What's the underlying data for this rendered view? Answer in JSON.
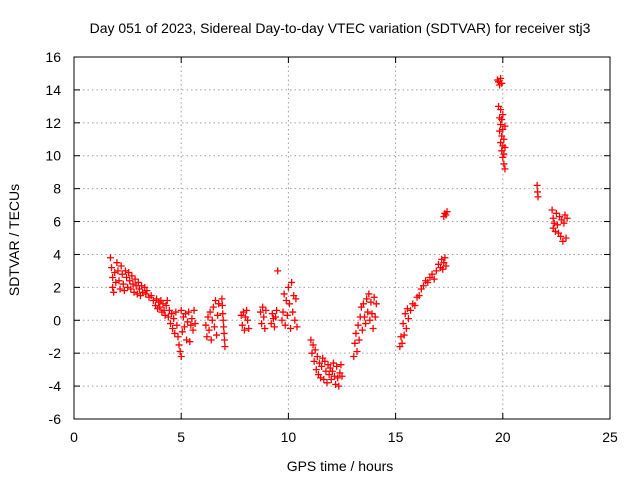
{
  "chart_data": {
    "type": "scatter",
    "title": "Day 051 of 2023, Sidereal Day-to-day VTEC variation (SDTVAR) for receiver stj3",
    "xlabel": "GPS time / hours",
    "ylabel": "SDTVAR / TECUs",
    "xlim": [
      0,
      25
    ],
    "ylim": [
      -6,
      16
    ],
    "xticks": [
      "0",
      "5",
      "10",
      "15",
      "20",
      "25"
    ],
    "yticks": [
      "-6",
      "-4",
      "-2",
      "0",
      "2",
      "4",
      "6",
      "8",
      "10",
      "12",
      "14",
      "16"
    ],
    "grid": true,
    "marker": "+",
    "color": "#ff0000",
    "series": [
      {
        "name": "SDTVAR",
        "points": [
          [
            1.7,
            3.8
          ],
          [
            1.75,
            3.2
          ],
          [
            1.8,
            2.6
          ],
          [
            1.8,
            2.0
          ],
          [
            1.85,
            1.7
          ],
          [
            1.9,
            2.9
          ],
          [
            1.95,
            2.3
          ],
          [
            2.0,
            3.5
          ],
          [
            2.05,
            3.0
          ],
          [
            2.1,
            2.4
          ],
          [
            2.15,
            1.9
          ],
          [
            2.2,
            3.3
          ],
          [
            2.25,
            2.8
          ],
          [
            2.3,
            2.2
          ],
          [
            2.35,
            1.8
          ],
          [
            2.4,
            3.0
          ],
          [
            2.45,
            2.6
          ],
          [
            2.5,
            2.0
          ],
          [
            2.55,
            2.9
          ],
          [
            2.6,
            2.4
          ],
          [
            2.65,
            1.9
          ],
          [
            2.7,
            2.7
          ],
          [
            2.75,
            2.2
          ],
          [
            2.8,
            1.7
          ],
          [
            2.85,
            2.5
          ],
          [
            2.9,
            2.1
          ],
          [
            2.95,
            1.6
          ],
          [
            3.0,
            2.3
          ],
          [
            3.05,
            1.9
          ],
          [
            3.1,
            1.5
          ],
          [
            3.15,
            2.1
          ],
          [
            3.2,
            1.7
          ],
          [
            3.3,
            2.0
          ],
          [
            3.35,
            1.6
          ],
          [
            3.4,
            1.8
          ],
          [
            3.5,
            1.4
          ],
          [
            3.6,
            1.5
          ],
          [
            3.7,
            1.2
          ],
          [
            3.8,
            0.9
          ],
          [
            3.85,
            1.3
          ],
          [
            3.9,
            0.7
          ],
          [
            3.95,
            1.1
          ],
          [
            4.0,
            0.8
          ],
          [
            4.05,
            1.2
          ],
          [
            4.1,
            0.5
          ],
          [
            4.15,
            1.0
          ],
          [
            4.2,
            0.6
          ],
          [
            4.25,
            0.3
          ],
          [
            4.3,
            0.9
          ],
          [
            4.35,
            1.2
          ],
          [
            4.4,
            0.2
          ],
          [
            4.45,
            0.6
          ],
          [
            4.5,
            -0.2
          ],
          [
            4.55,
            0.4
          ],
          [
            4.6,
            -0.5
          ],
          [
            4.65,
            0.1
          ],
          [
            4.7,
            -0.8
          ],
          [
            4.75,
            0.5
          ],
          [
            4.8,
            -0.3
          ],
          [
            4.85,
            -1.0
          ],
          [
            4.9,
            -1.5
          ],
          [
            4.95,
            -1.9
          ],
          [
            5.0,
            -2.2
          ],
          [
            5.0,
            0.6
          ],
          [
            5.05,
            -0.7
          ],
          [
            5.1,
            0.2
          ],
          [
            5.15,
            -0.4
          ],
          [
            5.2,
            0.4
          ],
          [
            5.25,
            -1.2
          ],
          [
            5.3,
            -0.1
          ],
          [
            5.35,
            0.5
          ],
          [
            5.4,
            -1.3
          ],
          [
            5.45,
            -0.3
          ],
          [
            5.5,
            0.1
          ],
          [
            5.55,
            -0.6
          ],
          [
            5.6,
            0.6
          ],
          [
            5.65,
            -0.2
          ],
          [
            6.15,
            -0.3
          ],
          [
            6.2,
            -1.0
          ],
          [
            6.25,
            0.2
          ],
          [
            6.3,
            -0.6
          ],
          [
            6.35,
            0.5
          ],
          [
            6.4,
            -1.2
          ],
          [
            6.45,
            0.0
          ],
          [
            6.5,
            0.8
          ],
          [
            6.55,
            -0.4
          ],
          [
            6.6,
            1.2
          ],
          [
            6.65,
            -0.9
          ],
          [
            6.7,
            0.3
          ],
          [
            6.75,
            1.0
          ],
          [
            6.9,
            1.3
          ],
          [
            6.92,
            0.9
          ],
          [
            6.94,
            0.4
          ],
          [
            6.96,
            0.0
          ],
          [
            6.98,
            -0.4
          ],
          [
            7.0,
            -0.8
          ],
          [
            7.02,
            -1.2
          ],
          [
            7.04,
            -1.6
          ],
          [
            7.8,
            0.3
          ],
          [
            7.85,
            -0.3
          ],
          [
            7.9,
            0.5
          ],
          [
            7.95,
            -0.6
          ],
          [
            8.0,
            0.2
          ],
          [
            8.05,
            0.6
          ],
          [
            8.1,
            0.0
          ],
          [
            8.15,
            -0.5
          ],
          [
            8.7,
            0.5
          ],
          [
            8.75,
            -0.2
          ],
          [
            8.8,
            0.8
          ],
          [
            8.85,
            0.2
          ],
          [
            8.9,
            -0.5
          ],
          [
            8.95,
            0.6
          ],
          [
            9.2,
            -0.2
          ],
          [
            9.25,
            0.4
          ],
          [
            9.3,
            0.1
          ],
          [
            9.35,
            -0.4
          ],
          [
            9.4,
            0.2
          ],
          [
            9.45,
            0.6
          ],
          [
            9.5,
            3.0
          ],
          [
            9.7,
            0.0
          ],
          [
            9.75,
            0.5
          ],
          [
            9.8,
            1.6
          ],
          [
            9.85,
            -0.3
          ],
          [
            9.9,
            1.2
          ],
          [
            9.95,
            0.3
          ],
          [
            10.0,
            2.0
          ],
          [
            10.05,
            1.0
          ],
          [
            10.1,
            -0.5
          ],
          [
            10.15,
            2.3
          ],
          [
            10.2,
            0.5
          ],
          [
            10.25,
            1.5
          ],
          [
            10.3,
            0.0
          ],
          [
            10.35,
            1.3
          ],
          [
            10.4,
            -0.4
          ],
          [
            11.05,
            -1.2
          ],
          [
            11.1,
            -2.0
          ],
          [
            11.15,
            -1.5
          ],
          [
            11.2,
            -2.5
          ],
          [
            11.25,
            -1.8
          ],
          [
            11.3,
            -3.0
          ],
          [
            11.35,
            -2.2
          ],
          [
            11.4,
            -3.3
          ],
          [
            11.45,
            -2.6
          ],
          [
            11.5,
            -3.5
          ],
          [
            11.55,
            -2.8
          ],
          [
            11.6,
            -2.3
          ],
          [
            11.65,
            -3.6
          ],
          [
            11.7,
            -2.5
          ],
          [
            11.75,
            -3.1
          ],
          [
            11.8,
            -3.8
          ],
          [
            11.85,
            -2.7
          ],
          [
            11.9,
            -3.3
          ],
          [
            11.95,
            -2.9
          ],
          [
            12.0,
            -3.6
          ],
          [
            12.05,
            -3.1
          ],
          [
            12.1,
            -2.6
          ],
          [
            12.15,
            -3.4
          ],
          [
            12.2,
            -3.9
          ],
          [
            12.25,
            -2.8
          ],
          [
            12.3,
            -3.5
          ],
          [
            12.35,
            -4.0
          ],
          [
            12.4,
            -3.2
          ],
          [
            12.45,
            -2.7
          ],
          [
            12.5,
            -3.4
          ],
          [
            13.05,
            -2.2
          ],
          [
            13.1,
            -1.4
          ],
          [
            13.15,
            -0.8
          ],
          [
            13.2,
            -1.9
          ],
          [
            13.25,
            -0.3
          ],
          [
            13.3,
            -1.2
          ],
          [
            13.35,
            0.2
          ],
          [
            13.4,
            0.8
          ],
          [
            13.45,
            -0.6
          ],
          [
            13.5,
            1.0
          ],
          [
            13.55,
            0.2
          ],
          [
            13.6,
            -0.2
          ],
          [
            13.65,
            1.3
          ],
          [
            13.7,
            0.5
          ],
          [
            13.75,
            1.6
          ],
          [
            13.8,
            0.0
          ],
          [
            13.85,
            1.1
          ],
          [
            13.9,
            0.4
          ],
          [
            13.95,
            -0.5
          ],
          [
            14.0,
            1.4
          ],
          [
            14.05,
            0.2
          ],
          [
            14.1,
            1.0
          ],
          [
            15.2,
            -1.6
          ],
          [
            15.25,
            -1.0
          ],
          [
            15.3,
            -1.4
          ],
          [
            15.35,
            -0.2
          ],
          [
            15.4,
            -0.9
          ],
          [
            15.45,
            0.4
          ],
          [
            15.5,
            -0.5
          ],
          [
            15.55,
            0.7
          ],
          [
            15.6,
            0.1
          ],
          [
            15.7,
            0.6
          ],
          [
            15.8,
            1.0
          ],
          [
            15.9,
            0.9
          ],
          [
            16.0,
            1.4
          ],
          [
            16.1,
            1.5
          ],
          [
            16.2,
            1.9
          ],
          [
            16.3,
            2.1
          ],
          [
            16.4,
            2.4
          ],
          [
            16.5,
            2.3
          ],
          [
            16.6,
            2.6
          ],
          [
            16.7,
            2.8
          ],
          [
            16.8,
            2.5
          ],
          [
            16.9,
            3.0
          ],
          [
            17.0,
            3.4
          ],
          [
            17.1,
            3.2
          ],
          [
            17.15,
            3.7
          ],
          [
            17.2,
            3.1
          ],
          [
            17.25,
            3.5
          ],
          [
            17.3,
            3.8
          ],
          [
            17.35,
            3.3
          ],
          [
            17.25,
            6.3
          ],
          [
            17.3,
            6.5
          ],
          [
            17.35,
            6.4
          ],
          [
            17.4,
            6.6
          ],
          [
            19.75,
            14.6
          ],
          [
            19.8,
            14.5
          ],
          [
            19.85,
            14.3
          ],
          [
            19.9,
            14.7
          ],
          [
            19.95,
            14.4
          ],
          [
            19.8,
            13.0
          ],
          [
            19.85,
            12.3
          ],
          [
            19.85,
            11.5
          ],
          [
            19.9,
            12.8
          ],
          [
            19.9,
            11.9
          ],
          [
            19.9,
            10.8
          ],
          [
            19.95,
            12.2
          ],
          [
            19.95,
            11.2
          ],
          [
            19.95,
            10.3
          ],
          [
            20.0,
            12.5
          ],
          [
            20.0,
            11.6
          ],
          [
            20.0,
            10.6
          ],
          [
            20.0,
            9.9
          ],
          [
            20.05,
            11.0
          ],
          [
            20.05,
            10.1
          ],
          [
            20.05,
            9.5
          ],
          [
            20.1,
            10.5
          ],
          [
            20.1,
            9.2
          ],
          [
            20.1,
            11.8
          ],
          [
            21.6,
            8.2
          ],
          [
            21.62,
            7.8
          ],
          [
            21.64,
            7.5
          ],
          [
            22.3,
            6.7
          ],
          [
            22.35,
            6.2
          ],
          [
            22.35,
            5.6
          ],
          [
            22.4,
            5.9
          ],
          [
            22.45,
            5.4
          ],
          [
            22.5,
            6.5
          ],
          [
            22.55,
            5.8
          ],
          [
            22.6,
            5.3
          ],
          [
            22.65,
            6.3
          ],
          [
            22.7,
            5.1
          ],
          [
            22.75,
            6.1
          ],
          [
            22.8,
            4.8
          ],
          [
            22.85,
            5.9
          ],
          [
            22.9,
            6.4
          ],
          [
            22.95,
            5.0
          ],
          [
            23.0,
            6.2
          ]
        ]
      }
    ]
  }
}
